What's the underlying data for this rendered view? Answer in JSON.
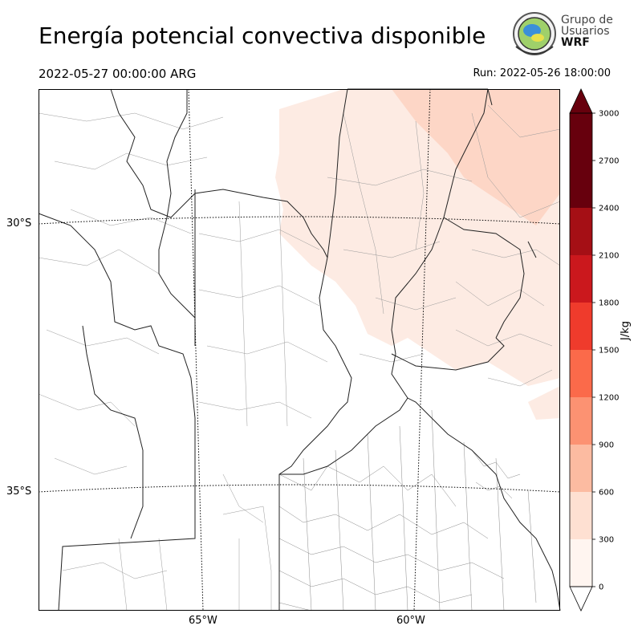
{
  "header": {
    "title": "Energía potencial convectiva disponible",
    "valid_time": "2022-05-27 00:00:00 ARG",
    "run_time": "Run: 2022-05-26 18:00:00"
  },
  "logo": {
    "line1": "Grupo de",
    "line2": "Usuarios",
    "line3": "WRF"
  },
  "axes": {
    "lat_labels": [
      "30°S",
      "35°S"
    ],
    "lon_labels": [
      "65°W",
      "60°W"
    ]
  },
  "colorbar": {
    "label": "J/kg",
    "ticks": [
      "0",
      "300",
      "600",
      "900",
      "1200",
      "1500",
      "1800",
      "2100",
      "2400",
      "2700",
      "3000"
    ],
    "colors": [
      "#fff5f0",
      "#fee0d2",
      "#fcbba1",
      "#fc9272",
      "#fb6a4a",
      "#ef3b2c",
      "#cb181d",
      "#a50f15",
      "#67000d",
      "#67000d"
    ],
    "over_color": "#67000d",
    "under_color": "#ffffff"
  },
  "field_colors": {
    "level_0_300": "#fdebe3",
    "level_300_600": "#fdd6c6"
  }
}
